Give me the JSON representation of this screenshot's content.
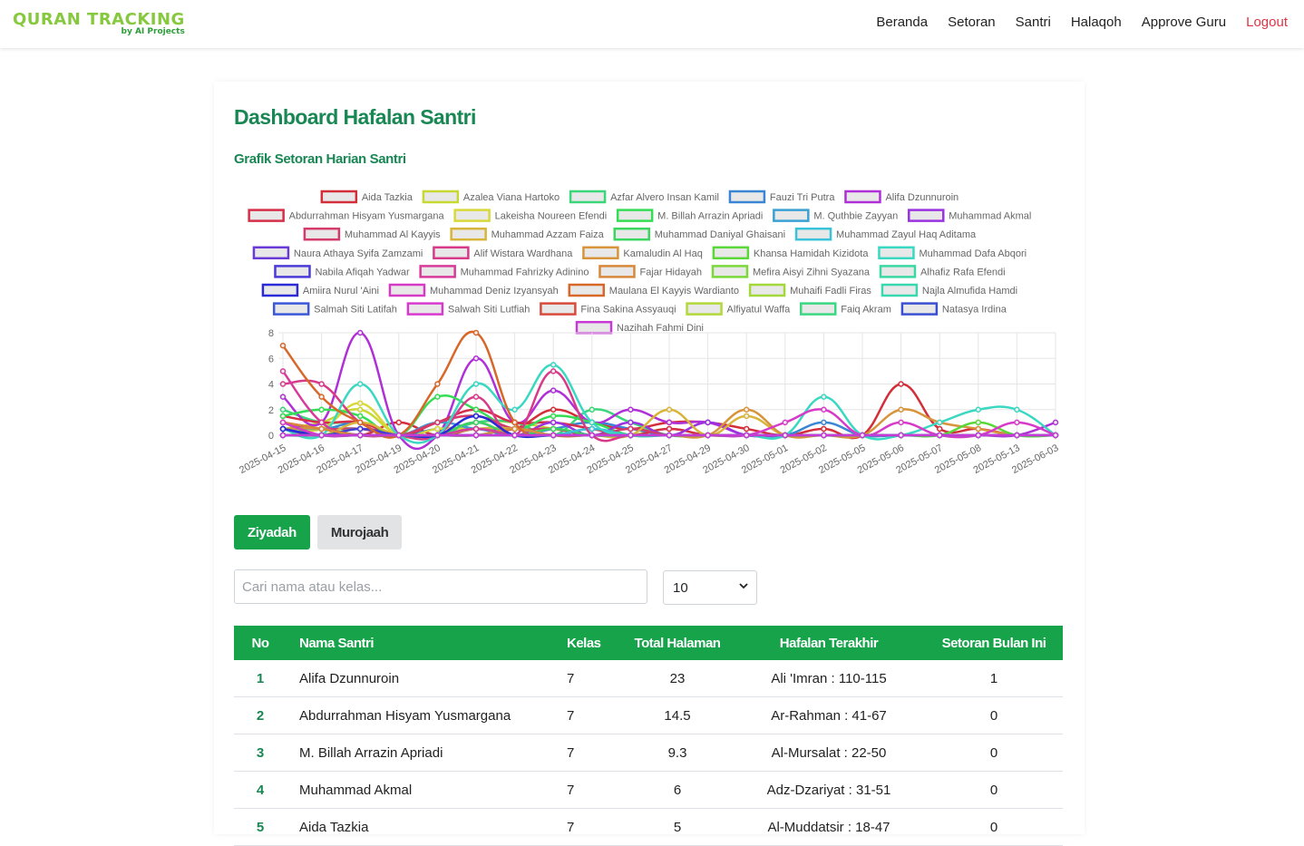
{
  "brand": {
    "title": "QURAN TRACKING",
    "subtitle": "by AI Projects"
  },
  "nav": {
    "items": [
      "Beranda",
      "Setoran",
      "Santri",
      "Halaqoh",
      "Approve Guru"
    ],
    "logout": "Logout"
  },
  "page": {
    "title": "Dashboard Hafalan Santri",
    "chart_title": "Grafik Setoran Harian Santri"
  },
  "tabs": {
    "ziyadah": "Ziyadah",
    "murojaah": "Murojaah",
    "active": "Ziyadah"
  },
  "search": {
    "placeholder": "Cari nama atau kelas...",
    "value": ""
  },
  "page_size": {
    "value": "10"
  },
  "table": {
    "headers": [
      "No",
      "Nama Santri",
      "Kelas",
      "Total Halaman",
      "Hafalan Terakhir",
      "Setoran Bulan Ini"
    ],
    "rows": [
      [
        "1",
        "Alifa Dzunnuroin",
        "7",
        "23",
        "Ali 'Imran : 110-115",
        "1"
      ],
      [
        "2",
        "Abdurrahman Hisyam Yusmargana",
        "7",
        "14.5",
        "Ar-Rahman : 41-67",
        "0"
      ],
      [
        "3",
        "M. Billah Arrazin Apriadi",
        "7",
        "9.3",
        "Al-Mursalat : 22-50",
        "0"
      ],
      [
        "4",
        "Muhammad Akmal",
        "7",
        "6",
        "Adz-Dzariyat : 31-51",
        "0"
      ],
      [
        "5",
        "Aida Tazkia",
        "7",
        "5",
        "Al-Muddatsir : 18-47",
        "0"
      ]
    ]
  },
  "colors": {
    "primary": "#16a34a",
    "title": "#198754",
    "logout": "#dc3545"
  },
  "chart_data": {
    "type": "line",
    "x": [
      "2025-04-15",
      "2025-04-16",
      "2025-04-17",
      "2025-04-19",
      "2025-04-20",
      "2025-04-21",
      "2025-04-22",
      "2025-04-23",
      "2025-04-24",
      "2025-04-25",
      "2025-04-27",
      "2025-04-29",
      "2025-04-30",
      "2025-05-01",
      "2025-05-02",
      "2025-05-05",
      "2025-05-06",
      "2025-05-07",
      "2025-05-08",
      "2025-05-13",
      "2025-06-03"
    ],
    "ylim": [
      0,
      8
    ],
    "yticks": [
      0,
      2,
      4,
      6,
      8
    ],
    "grid": true,
    "legend_position": "top",
    "series": [
      {
        "name": "Aida Tazkia",
        "color": "#d32f3a",
        "values": [
          1,
          0.5,
          0,
          1,
          0,
          0.5,
          0.5,
          2,
          1,
          0.5,
          1,
          1,
          0.5,
          0,
          0.5,
          0,
          4,
          0.5,
          0.5,
          0,
          0
        ]
      },
      {
        "name": "Azalea Viana Hartoko",
        "color": "#c8d832",
        "values": [
          0.5,
          1,
          2,
          0,
          0,
          1,
          1,
          0.5,
          0,
          0,
          0.5,
          0,
          0,
          0,
          0,
          0,
          0,
          0,
          0,
          0,
          0
        ]
      },
      {
        "name": "Azfar Alvero Insan Kamil",
        "color": "#3bd67a",
        "values": [
          2,
          1,
          1,
          0,
          0,
          1,
          1,
          0,
          2,
          1,
          0,
          0,
          0,
          0,
          0,
          0,
          0,
          0,
          0,
          0,
          0
        ]
      },
      {
        "name": "Fauzi Tri Putra",
        "color": "#3a86d4",
        "values": [
          1,
          0.5,
          1,
          0,
          0.5,
          0.5,
          0,
          0.5,
          1,
          0.5,
          0,
          0,
          0,
          0,
          1,
          0,
          0,
          0,
          0,
          0,
          0
        ]
      },
      {
        "name": "Alifa Dzunnuroin",
        "color": "#b030d8",
        "values": [
          3,
          1,
          8,
          0,
          0,
          6,
          1,
          3.5,
          1,
          2,
          1,
          1,
          0,
          0,
          0,
          0,
          0,
          0,
          0,
          0,
          1
        ]
      },
      {
        "name": "Abdurrahman Hisyam Yusmargana",
        "color": "#d62e48",
        "values": [
          1.5,
          1,
          1,
          0,
          1,
          2,
          1,
          1,
          0.5,
          0,
          0.5,
          0,
          0,
          0,
          0,
          0,
          0,
          0,
          0,
          0,
          0
        ]
      },
      {
        "name": "Lakeisha Noureen Efendi",
        "color": "#d8d83a",
        "values": [
          0.5,
          0.5,
          2.5,
          0,
          0.5,
          0.5,
          0.5,
          0,
          0,
          0,
          0,
          0,
          0,
          0,
          0,
          0,
          0,
          0,
          0,
          0,
          0
        ]
      },
      {
        "name": "M. Billah Arrazin Apriadi",
        "color": "#35dd55",
        "values": [
          1.5,
          2,
          1.5,
          0,
          3,
          2,
          0.5,
          1.5,
          1,
          0,
          0,
          0,
          0,
          0,
          0,
          0,
          0,
          0,
          0,
          0,
          0
        ]
      },
      {
        "name": "M. Quthbie Zayyan",
        "color": "#3aa0d4",
        "values": [
          0.5,
          0.5,
          0.5,
          0,
          1,
          0.5,
          0.5,
          0,
          0.5,
          0,
          0,
          0,
          0,
          0,
          0,
          0,
          0,
          0,
          0,
          0,
          0
        ]
      },
      {
        "name": "Muhammad Akmal",
        "color": "#9a32e0",
        "values": [
          0.5,
          0,
          0,
          0,
          0,
          1,
          0,
          1,
          0,
          1,
          0,
          1,
          0,
          0,
          0,
          0,
          0,
          0,
          0,
          0,
          0
        ]
      },
      {
        "name": "Muhammad Al Kayyis",
        "color": "#d43a6a",
        "values": [
          1,
          0.5,
          0.5,
          0,
          1,
          1.5,
          0.5,
          0.5,
          0,
          0.5,
          0,
          0,
          0,
          0,
          0,
          0,
          0,
          0,
          0,
          0,
          0
        ]
      },
      {
        "name": "Muhammad Azzam Faiza",
        "color": "#d8b43a",
        "values": [
          0.5,
          0,
          1,
          0,
          0,
          0.5,
          0.5,
          0,
          0,
          0,
          2,
          0,
          1.5,
          0,
          0,
          0,
          0,
          0,
          0,
          0,
          0
        ]
      },
      {
        "name": "Muhammad Daniyal Ghaisani",
        "color": "#3ad660",
        "values": [
          1,
          0,
          0.5,
          0,
          0,
          1,
          0,
          0.5,
          0,
          0,
          0,
          0,
          0,
          0,
          0,
          0,
          0,
          0,
          0,
          0,
          0
        ]
      },
      {
        "name": "Muhammad Zayul Haq Aditama",
        "color": "#3ac2d8",
        "values": [
          0.5,
          0.5,
          0,
          0,
          0,
          0.5,
          0,
          0,
          0.5,
          0,
          0,
          0,
          0,
          0,
          0,
          0,
          0,
          0,
          0,
          0,
          0
        ]
      },
      {
        "name": "Naura Athaya Syifa Zamzami",
        "color": "#6a3ad8",
        "values": [
          0.5,
          0,
          0.5,
          0,
          0,
          0,
          0.5,
          0,
          0,
          0,
          0,
          0,
          0,
          0,
          0,
          0,
          0,
          0,
          0,
          0,
          0
        ]
      },
      {
        "name": "Alif Wistara Wardhana",
        "color": "#d83a8a",
        "values": [
          4,
          4,
          1,
          0,
          0,
          3,
          0,
          5,
          0,
          0,
          0,
          0,
          0,
          0,
          0,
          0,
          0,
          0,
          0,
          0,
          0
        ]
      },
      {
        "name": "Kamaludin Al Haq",
        "color": "#d8943a",
        "values": [
          0.5,
          0.5,
          0,
          0,
          0,
          0,
          0.5,
          0,
          0,
          0,
          0,
          0,
          2,
          0,
          0,
          0,
          2,
          1,
          0.5,
          0,
          0
        ]
      },
      {
        "name": "Khansa Hamidah Kizidota",
        "color": "#5ad83a",
        "values": [
          0,
          0,
          0.5,
          0,
          0,
          0.5,
          0,
          0,
          0,
          0,
          0,
          0,
          0,
          0,
          0,
          0,
          0,
          0,
          1,
          0,
          0
        ]
      },
      {
        "name": "Muhammad Dafa Abqori",
        "color": "#3ad8c2",
        "values": [
          0.5,
          0,
          4,
          0,
          0,
          4,
          2,
          5.5,
          1,
          0,
          0,
          0,
          0,
          0,
          3,
          0,
          0,
          1,
          2,
          2,
          0
        ]
      },
      {
        "name": "Nabila Afiqah Yadwar",
        "color": "#4a3ad8",
        "values": [
          0.5,
          0,
          0.5,
          0,
          0,
          0,
          0,
          0,
          0,
          0,
          0,
          0,
          0,
          0,
          0,
          0,
          0,
          0,
          0,
          0,
          0
        ]
      },
      {
        "name": "Muhammad Fahrizky Adinino",
        "color": "#d83a9a",
        "values": [
          5,
          1,
          0,
          0,
          0,
          0.5,
          0,
          0,
          0,
          0,
          0,
          0,
          0,
          0,
          0,
          0,
          0,
          0,
          0,
          0,
          0
        ]
      },
      {
        "name": "Fajar Hidayah",
        "color": "#d8883a",
        "values": [
          1,
          0.5,
          0,
          0,
          0,
          0,
          0,
          0,
          0,
          0,
          0,
          0,
          0,
          0,
          0,
          0,
          0,
          0,
          0,
          0,
          0
        ]
      },
      {
        "name": "Mefira Aisyi Zihni Syazana",
        "color": "#7ad83a",
        "values": [
          0,
          0,
          0,
          0,
          0,
          0,
          0,
          0,
          0,
          0,
          0,
          0,
          0,
          0,
          0,
          0,
          0,
          0,
          0,
          0,
          0
        ]
      },
      {
        "name": "Alhafiz Rafa Efendi",
        "color": "#3ad8a2",
        "values": [
          0,
          0,
          0,
          0,
          0,
          0,
          0,
          0,
          0,
          0,
          0,
          0,
          0,
          0,
          0,
          0,
          0,
          0,
          0,
          0,
          0
        ]
      },
      {
        "name": "Amiira Nurul 'Aini",
        "color": "#2a2ad8",
        "values": [
          0.5,
          0,
          0,
          0,
          0,
          1.5,
          0,
          0,
          0,
          0,
          0,
          0,
          0,
          0,
          0,
          0,
          0,
          0,
          0,
          0,
          0
        ]
      },
      {
        "name": "Muhammad Deniz Izyansyah",
        "color": "#d83ac8",
        "values": [
          1,
          0,
          0,
          0,
          0,
          0,
          0,
          0,
          0,
          0,
          0,
          0,
          0,
          1,
          2,
          0,
          1,
          0,
          0,
          1,
          0
        ]
      },
      {
        "name": "Maulana El Kayyis Wardianto",
        "color": "#d8682a",
        "values": [
          7,
          3,
          1,
          0,
          4,
          8,
          1,
          0,
          0,
          0,
          0,
          0,
          0,
          0,
          0,
          0,
          0,
          0,
          0,
          0,
          0
        ]
      },
      {
        "name": "Muhaifi Fadli Firas",
        "color": "#a2d83a",
        "values": [
          0,
          0,
          0,
          0,
          0,
          0,
          0,
          0,
          0,
          0,
          0,
          0,
          0,
          0,
          0,
          0,
          0,
          0,
          0,
          0,
          0
        ]
      },
      {
        "name": "Najla Almufida Hamdi",
        "color": "#3ad8b0",
        "values": [
          0,
          0,
          0,
          0,
          0,
          0,
          0,
          0,
          0,
          0,
          0,
          0,
          0,
          0,
          0,
          0,
          0,
          0,
          0,
          0,
          0
        ]
      },
      {
        "name": "Salmah Siti Latifah",
        "color": "#3a58d8",
        "values": [
          0,
          0,
          0,
          0,
          0,
          0,
          0,
          0,
          0,
          0,
          0,
          0,
          0,
          0,
          0,
          0,
          0,
          0,
          0,
          0,
          0
        ]
      },
      {
        "name": "Salwah Siti Lutfiah",
        "color": "#d83ad0",
        "values": [
          0,
          0,
          0,
          0,
          0,
          0,
          0,
          0,
          0,
          0,
          0,
          0,
          0,
          0,
          0,
          0,
          0,
          0,
          0,
          0,
          0
        ]
      },
      {
        "name": "Fina Sakina Assyauqi",
        "color": "#d84a3a",
        "values": [
          0,
          0,
          0,
          0,
          0,
          0,
          0,
          0,
          0,
          0,
          0,
          0,
          0,
          0,
          0,
          0,
          0,
          0,
          0,
          0,
          0
        ]
      },
      {
        "name": "Alfiyatul Waffa",
        "color": "#b2d83a",
        "values": [
          0,
          0,
          0,
          0,
          0,
          0,
          0,
          0,
          0,
          0,
          0,
          0,
          0,
          0,
          0,
          0,
          0,
          0,
          0,
          0,
          0
        ]
      },
      {
        "name": "Faiq Akram",
        "color": "#3ad880",
        "values": [
          0,
          0,
          0,
          0,
          0,
          0,
          0,
          0,
          0,
          0,
          0,
          0,
          0,
          0,
          0,
          0,
          0,
          0,
          0,
          0,
          0
        ]
      },
      {
        "name": "Natasya Irdina",
        "color": "#3a50d0",
        "values": [
          0,
          0,
          0,
          0,
          0,
          0,
          0,
          0,
          0,
          0,
          0,
          0,
          0,
          0,
          0,
          0,
          0,
          0,
          0,
          0,
          0
        ]
      },
      {
        "name": "Nazihah Fahmi Dini",
        "color": "#c83ad8",
        "values": [
          0,
          0,
          0,
          0,
          0,
          0,
          0,
          0,
          0,
          0,
          0,
          0,
          0,
          0,
          0,
          0,
          0,
          0,
          0,
          0,
          0
        ]
      }
    ]
  }
}
